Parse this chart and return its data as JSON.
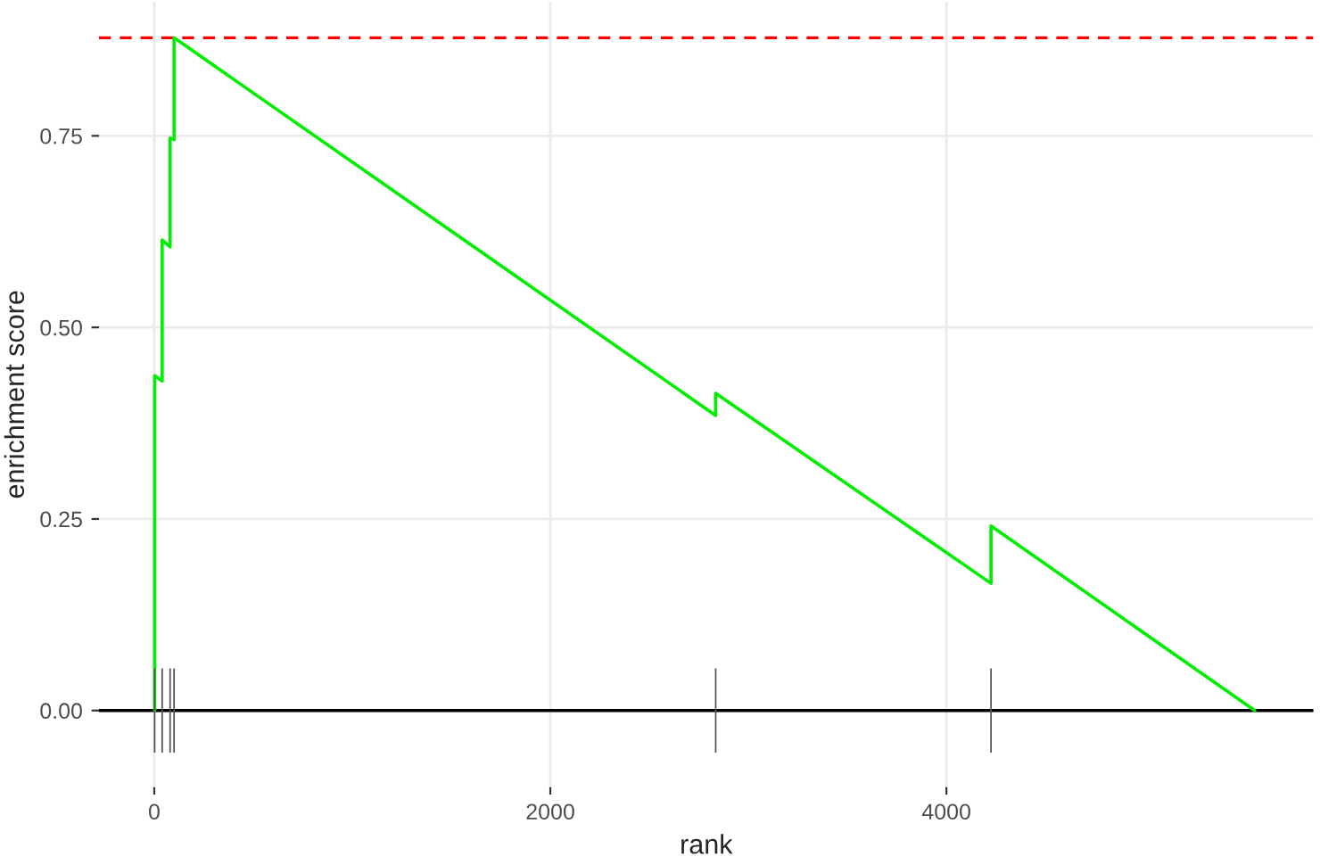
{
  "chart_data": {
    "type": "line",
    "xlabel": "rank",
    "ylabel": "enrichment score",
    "xlim": [
      -279,
      5853
    ],
    "ylim": [
      -0.1,
      0.925
    ],
    "xticks": [
      0,
      2000,
      4000
    ],
    "yticks": [
      {
        "value": 0,
        "label": "0.00"
      },
      {
        "value": 0.25,
        "label": "0.25"
      },
      {
        "value": 0.5,
        "label": "0.50"
      },
      {
        "value": 0.75,
        "label": "0.75"
      }
    ],
    "grid": true,
    "legend": false,
    "line_style": "solid",
    "marker": "none",
    "series": [
      {
        "type": "bar",
        "color": "#555555",
        "x": [
          2,
          40,
          80,
          100,
          2835,
          4225
        ],
        "base": [
          -0.055,
          -0.055,
          -0.055,
          -0.055,
          -0.055,
          -0.055
        ],
        "values": [
          0.11,
          0.11,
          0.11,
          0.11,
          0.11,
          0.11
        ]
      },
      {
        "color": "#00ee00",
        "x": [
          2,
          2,
          40,
          40,
          80,
          80,
          100,
          100,
          2835,
          2835,
          4225,
          4225,
          5557
        ],
        "values": [
          0,
          0.437,
          0.43,
          0.614,
          0.605,
          0.747,
          0.745,
          0.878,
          0.385,
          0.414,
          0.166,
          0.241,
          0
        ]
      }
    ],
    "ref_lines": [
      {
        "axis": "y",
        "value": 0,
        "color": "#000000",
        "line_style": "solid"
      },
      {
        "axis": "y",
        "value": 0.878,
        "color": "#ff0000",
        "line_style": "dashed"
      }
    ]
  }
}
